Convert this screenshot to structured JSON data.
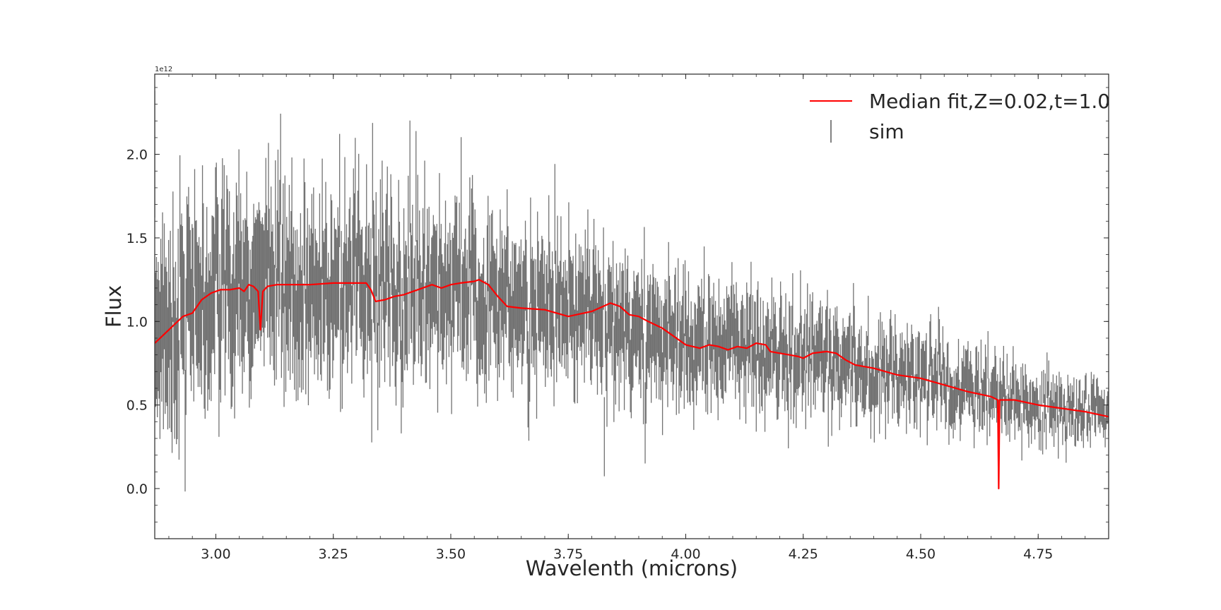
{
  "chart_data": {
    "type": "line",
    "xlabel": "Wavelenth (microns)",
    "ylabel": "Flux",
    "y_offset_label": "1e12",
    "y_scale": 1000000000000.0,
    "xlim": [
      2.87,
      4.9
    ],
    "ylim": [
      -0.3,
      2.48
    ],
    "xticks": [
      3.0,
      3.25,
      3.5,
      3.75,
      4.0,
      4.25,
      4.5,
      4.75
    ],
    "xtick_labels": [
      "3.00",
      "3.25",
      "3.50",
      "3.75",
      "4.00",
      "4.25",
      "4.50",
      "4.75"
    ],
    "yticks": [
      0.0,
      0.5,
      1.0,
      1.5,
      2.0
    ],
    "ytick_labels": [
      "0.0",
      "0.5",
      "1.0",
      "1.5",
      "2.0"
    ],
    "grid": false,
    "legend_position": "upper-right",
    "legend": [
      {
        "label": "Median fit,Z=0.02,t=1.0",
        "kind": "line",
        "color": "#ff0000"
      },
      {
        "label": "sim",
        "kind": "errorbar",
        "color": "#595959"
      }
    ],
    "series": [
      {
        "name": "Median fit,Z=0.02,t=1.0",
        "kind": "line",
        "color": "#ff0000",
        "x": [
          2.87,
          2.9,
          2.93,
          2.95,
          2.97,
          2.99,
          3.01,
          3.03,
          3.05,
          3.06,
          3.07,
          3.08,
          3.09,
          3.095,
          3.1,
          3.11,
          3.13,
          3.15,
          3.2,
          3.25,
          3.3,
          3.32,
          3.33,
          3.34,
          3.36,
          3.38,
          3.4,
          3.43,
          3.46,
          3.48,
          3.5,
          3.52,
          3.55,
          3.56,
          3.58,
          3.6,
          3.62,
          3.65,
          3.7,
          3.75,
          3.8,
          3.84,
          3.86,
          3.88,
          3.9,
          3.92,
          3.95,
          3.97,
          4.0,
          4.03,
          4.05,
          4.07,
          4.09,
          4.11,
          4.13,
          4.15,
          4.17,
          4.18,
          4.2,
          4.22,
          4.24,
          4.25,
          4.27,
          4.3,
          4.32,
          4.34,
          4.36,
          4.4,
          4.45,
          4.5,
          4.55,
          4.6,
          4.65,
          4.664,
          4.666,
          4.668,
          4.7,
          4.75,
          4.8,
          4.85,
          4.9
        ],
        "y": [
          0.87,
          0.95,
          1.03,
          1.05,
          1.13,
          1.17,
          1.19,
          1.19,
          1.2,
          1.18,
          1.22,
          1.21,
          1.18,
          0.95,
          1.18,
          1.21,
          1.22,
          1.22,
          1.22,
          1.23,
          1.23,
          1.23,
          1.19,
          1.12,
          1.13,
          1.15,
          1.16,
          1.19,
          1.22,
          1.2,
          1.22,
          1.23,
          1.24,
          1.25,
          1.22,
          1.15,
          1.09,
          1.08,
          1.07,
          1.03,
          1.06,
          1.11,
          1.09,
          1.04,
          1.03,
          1.0,
          0.96,
          0.92,
          0.86,
          0.84,
          0.86,
          0.85,
          0.83,
          0.85,
          0.84,
          0.87,
          0.86,
          0.82,
          0.81,
          0.8,
          0.79,
          0.78,
          0.81,
          0.82,
          0.81,
          0.77,
          0.74,
          0.72,
          0.68,
          0.66,
          0.62,
          0.58,
          0.55,
          0.53,
          0.0,
          0.53,
          0.53,
          0.5,
          0.48,
          0.46,
          0.43
        ]
      },
      {
        "name": "sim",
        "kind": "errorbar",
        "color": "#595959",
        "x_range": [
          2.87,
          4.9
        ],
        "trend_x": [
          2.87,
          3.0,
          3.1,
          3.3,
          3.5,
          3.6,
          3.8,
          4.0,
          4.2,
          4.4,
          4.6,
          4.9
        ],
        "trend_y": [
          0.95,
          1.15,
          1.18,
          1.2,
          1.2,
          1.12,
          1.05,
          0.87,
          0.82,
          0.75,
          0.58,
          0.43
        ],
        "yerr_range_start": [
          0.35,
          0.45
        ],
        "yerr_range_end": [
          0.07,
          0.12
        ],
        "scatter_start": 0.3,
        "scatter_end": 0.08
      }
    ]
  }
}
